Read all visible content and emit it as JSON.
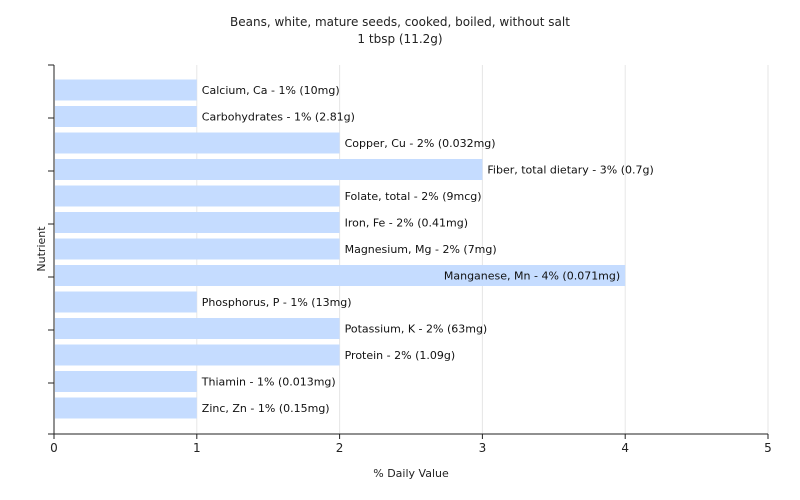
{
  "chart_data": {
    "type": "bar",
    "orientation": "horizontal",
    "title": "Beans, white, mature seeds, cooked, boiled, without salt",
    "subtitle": "1 tbsp (11.2g)",
    "xlabel": "% Daily Value",
    "ylabel": "Nutrient",
    "xlim": [
      0,
      5
    ],
    "xticks": [
      "0",
      "1",
      "2",
      "3",
      "4",
      "5"
    ],
    "grid": true,
    "bar_color": "#c5dcff",
    "grid_color": "#e6e6e6",
    "categories": [
      "Calcium, Ca",
      "Carbohydrates",
      "Copper, Cu",
      "Fiber, total dietary",
      "Folate, total",
      "Iron, Fe",
      "Magnesium, Mg",
      "Manganese, Mn",
      "Phosphorus, P",
      "Potassium, K",
      "Protein",
      "Thiamin",
      "Zinc, Zn"
    ],
    "values": [
      1,
      1,
      2,
      3,
      2,
      2,
      2,
      4,
      1,
      2,
      2,
      1,
      1
    ],
    "labels": [
      "Calcium, Ca - 1% (10mg)",
      "Carbohydrates - 1% (2.81g)",
      "Copper, Cu - 2% (0.032mg)",
      "Fiber, total dietary - 3% (0.7g)",
      "Folate, total - 2% (9mcg)",
      "Iron, Fe - 2% (0.41mg)",
      "Magnesium, Mg - 2% (7mg)",
      "Manganese, Mn - 4% (0.071mg)",
      "Phosphorus, P - 1% (13mg)",
      "Potassium, K - 2% (63mg)",
      "Protein - 2% (1.09g)",
      "Thiamin - 1% (0.013mg)",
      "Zinc, Zn - 1% (0.15mg)"
    ]
  }
}
